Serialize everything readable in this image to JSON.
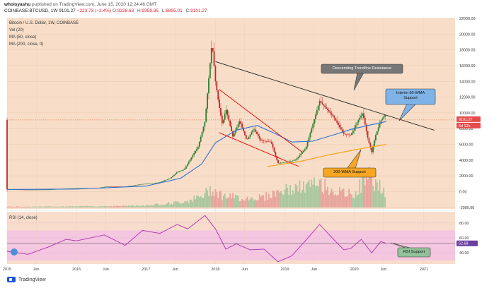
{
  "header": {
    "author": "whoisyashu",
    "published": "published on TradingView.com, June 15, 2020 12:24:46 GMT",
    "symbol": "COINBASE:BTCUSD, 1W",
    "price": "9101.27",
    "change": "−223.73 (−2.4%)",
    "o_label": "O:",
    "o_value": "9328.63",
    "h_label": "H:",
    "h_value": "9359.85",
    "l_label": "L:",
    "l_value": "8895.01",
    "c_label": "C:",
    "c_value": "9101.27"
  },
  "legend": {
    "title": "Bitcoin / U.S. Dollar, 1W, COINBASE",
    "vol": "Vol (20)",
    "ma50": "MA (50, close)",
    "ma200": "MA (200, close, 0)",
    "rsi": "RSI (14, close)"
  },
  "footer": {
    "brand": "TradingView"
  },
  "colors": {
    "price_bg": "#f8dec8",
    "rsi_bg": "#f8dccc",
    "rsi_band": "#f4c6e0",
    "up": "#2e7d32",
    "down": "#c62828",
    "ma50": "#2f6fd0",
    "ma200": "#f5a623",
    "rsi_line": "#b030b0",
    "trendline": "#222222"
  },
  "annotations": {
    "resistance": "Descending Trendline Resistance",
    "wma50": "Interim 50-WMA\nSupport",
    "wma200": "200-WMA Support",
    "rsi_support": "RSI Support"
  },
  "chart_data": [
    {
      "type": "candlestick",
      "title": "Bitcoin / U.S. Dollar, 1W, COINBASE",
      "y_ticks": [
        22000,
        20000,
        18000,
        16000,
        14000,
        12000,
        10000,
        8000,
        6000,
        4000,
        2000,
        0,
        -2000
      ],
      "y_tick_labels": [
        "22000.00",
        "20000.00",
        "18000.00",
        "16000.00",
        "14000.00",
        "12000.00",
        "10000.00",
        "8000.00",
        "6000.00",
        "4000.00",
        "2000.00",
        "0.00",
        "-2000.00"
      ],
      "ylim": [
        -2200,
        22000
      ],
      "x_tick_labels": [
        "2015",
        "Jun",
        "2016",
        "Jun",
        "2017",
        "Jun",
        "2018",
        "Jun",
        "2019",
        "Jun",
        "2020",
        "Jun",
        "2021"
      ],
      "x_tick_dates": [
        2015.0,
        2015.42,
        2016.0,
        2016.42,
        2017.0,
        2017.42,
        2018.0,
        2018.42,
        2019.0,
        2019.42,
        2020.0,
        2020.42,
        2021.0
      ],
      "xlim": [
        2015.0,
        2021.45
      ],
      "last_price": 9101.27,
      "last_price_label": "9101.27",
      "countdown_label": "6d 12h",
      "price_path": [
        [
          2015.0,
          300
        ],
        [
          2015.3,
          240
        ],
        [
          2015.6,
          260
        ],
        [
          2015.85,
          380
        ],
        [
          2016.0,
          430
        ],
        [
          2016.3,
          450
        ],
        [
          2016.45,
          670
        ],
        [
          2016.7,
          620
        ],
        [
          2016.95,
          960
        ],
        [
          2017.1,
          1050
        ],
        [
          2017.2,
          1180
        ],
        [
          2017.35,
          1700
        ],
        [
          2017.45,
          2500
        ],
        [
          2017.55,
          2800
        ],
        [
          2017.65,
          4300
        ],
        [
          2017.75,
          5700
        ],
        [
          2017.85,
          9000
        ],
        [
          2017.9,
          14000
        ],
        [
          2017.95,
          19000
        ],
        [
          2018.0,
          14000
        ],
        [
          2018.05,
          11000
        ],
        [
          2018.1,
          8500
        ],
        [
          2018.15,
          10500
        ],
        [
          2018.25,
          7000
        ],
        [
          2018.35,
          9000
        ],
        [
          2018.45,
          6500
        ],
        [
          2018.55,
          8000
        ],
        [
          2018.65,
          6500
        ],
        [
          2018.8,
          6300
        ],
        [
          2018.9,
          3600
        ],
        [
          2019.0,
          3700
        ],
        [
          2019.15,
          4000
        ],
        [
          2019.3,
          5500
        ],
        [
          2019.4,
          8500
        ],
        [
          2019.5,
          11500
        ],
        [
          2019.6,
          10500
        ],
        [
          2019.7,
          9500
        ],
        [
          2019.8,
          8000
        ],
        [
          2019.85,
          7300
        ],
        [
          2019.95,
          7200
        ],
        [
          2020.05,
          9000
        ],
        [
          2020.12,
          10000
        ],
        [
          2020.2,
          6500
        ],
        [
          2020.25,
          5000
        ],
        [
          2020.3,
          7000
        ],
        [
          2020.38,
          9000
        ],
        [
          2020.45,
          9800
        ],
        [
          2020.46,
          9101
        ]
      ],
      "ma50_path": [
        [
          2015.0,
          270
        ],
        [
          2016.0,
          330
        ],
        [
          2016.5,
          520
        ],
        [
          2017.0,
          700
        ],
        [
          2017.5,
          1700
        ],
        [
          2017.8,
          3500
        ],
        [
          2018.0,
          6200
        ],
        [
          2018.3,
          7800
        ],
        [
          2018.6,
          8400
        ],
        [
          2018.9,
          7200
        ],
        [
          2019.1,
          6300
        ],
        [
          2019.4,
          6400
        ],
        [
          2019.7,
          7200
        ],
        [
          2019.95,
          7900
        ],
        [
          2020.2,
          8400
        ],
        [
          2020.46,
          8900
        ]
      ],
      "ma200_path": [
        [
          2018.75,
          3200
        ],
        [
          2019.2,
          3800
        ],
        [
          2019.6,
          4600
        ],
        [
          2020.0,
          5300
        ],
        [
          2020.46,
          6000
        ]
      ],
      "volume": [
        [
          2015.0,
          60
        ],
        [
          2015.5,
          60
        ],
        [
          2016.0,
          80
        ],
        [
          2016.5,
          100
        ],
        [
          2017.0,
          150
        ],
        [
          2017.5,
          400
        ],
        [
          2017.8,
          800
        ],
        [
          2017.95,
          1500
        ],
        [
          2018.1,
          900
        ],
        [
          2018.4,
          700
        ],
        [
          2018.7,
          800
        ],
        [
          2018.9,
          1200
        ],
        [
          2019.3,
          1600
        ],
        [
          2019.5,
          1800
        ],
        [
          2019.8,
          1100
        ],
        [
          2020.0,
          1000
        ],
        [
          2020.2,
          2500
        ],
        [
          2020.35,
          1700
        ],
        [
          2020.46,
          900
        ]
      ]
    },
    {
      "type": "line",
      "title": "RSI (14, close)",
      "y_ticks": [
        80,
        60,
        40
      ],
      "y_tick_labels": [
        "80.00",
        "60.00",
        "40.00"
      ],
      "ylim": [
        25,
        95
      ],
      "band": [
        30,
        70
      ],
      "last_value": 52.68,
      "last_value_label": "52.68",
      "values": [
        [
          2015.0,
          42
        ],
        [
          2015.3,
          38
        ],
        [
          2015.6,
          48
        ],
        [
          2015.85,
          58
        ],
        [
          2016.0,
          56
        ],
        [
          2016.4,
          64
        ],
        [
          2016.7,
          50
        ],
        [
          2016.95,
          70
        ],
        [
          2017.2,
          66
        ],
        [
          2017.45,
          78
        ],
        [
          2017.6,
          72
        ],
        [
          2017.85,
          90
        ],
        [
          2018.0,
          72
        ],
        [
          2018.15,
          45
        ],
        [
          2018.3,
          52
        ],
        [
          2018.5,
          44
        ],
        [
          2018.7,
          45
        ],
        [
          2018.9,
          28
        ],
        [
          2019.1,
          36
        ],
        [
          2019.35,
          62
        ],
        [
          2019.5,
          78
        ],
        [
          2019.7,
          58
        ],
        [
          2019.85,
          44
        ],
        [
          2019.95,
          46
        ],
        [
          2020.1,
          58
        ],
        [
          2020.25,
          40
        ],
        [
          2020.38,
          55
        ],
        [
          2020.46,
          52.68
        ]
      ]
    }
  ]
}
